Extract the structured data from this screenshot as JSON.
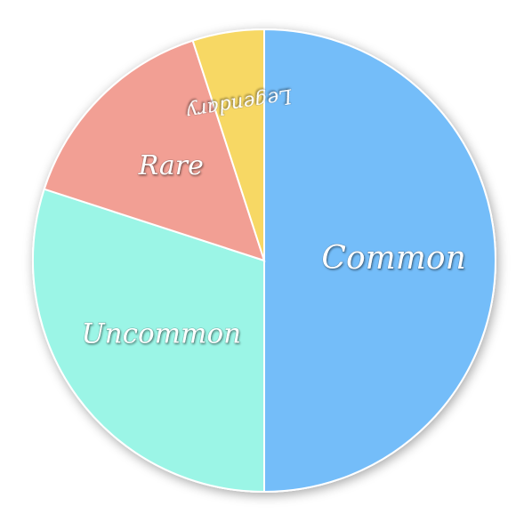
{
  "chart_data": {
    "type": "pie",
    "start_angle": "12 o'clock",
    "direction": "clockwise",
    "slices": [
      {
        "label": "Common",
        "value": 50,
        "color": "#74BDF9"
      },
      {
        "label": "Uncommon",
        "value": 30,
        "color": "#9BF5E6"
      },
      {
        "label": "Rare",
        "value": 15,
        "color": "#F29F94"
      },
      {
        "label": "Legendary",
        "value": 5,
        "color": "#F7D864"
      }
    ]
  }
}
